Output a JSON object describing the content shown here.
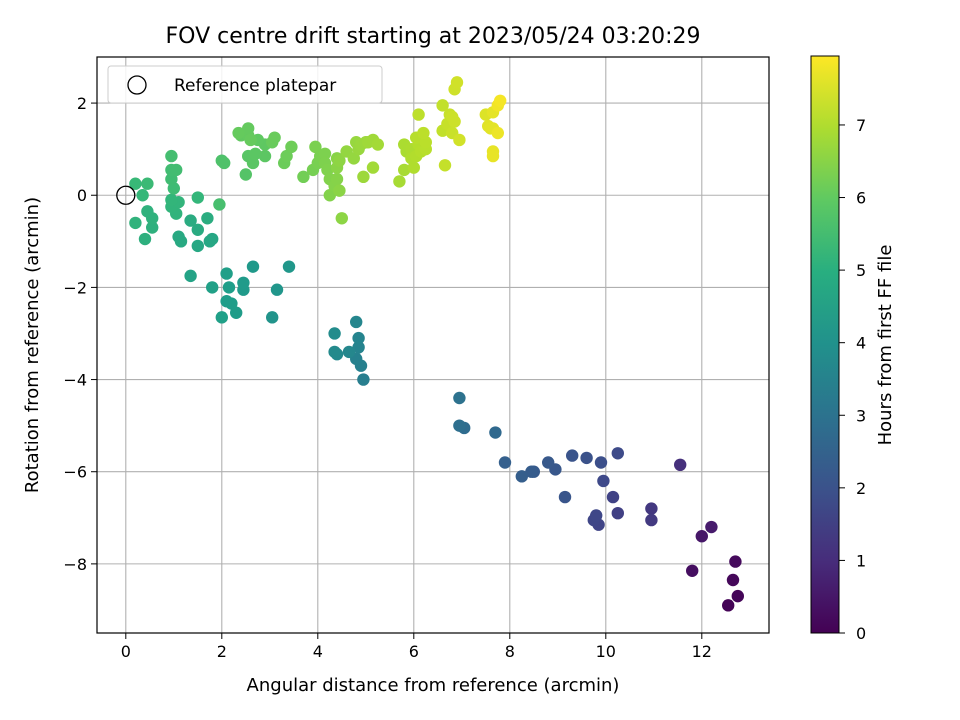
{
  "chart_data": {
    "type": "scatter",
    "title": "FOV centre drift starting at 2023/05/24 03:20:29",
    "xlabel": "Angular distance from reference (arcmin)",
    "ylabel": "Rotation from reference (arcmin)",
    "xlim": [
      -0.6,
      13.4
    ],
    "ylim": [
      -9.5,
      3.0
    ],
    "x_ticks": [
      0,
      2,
      4,
      6,
      8,
      10,
      12
    ],
    "y_ticks": [
      -8,
      -6,
      -4,
      -2,
      0,
      2
    ],
    "grid": true,
    "legend": {
      "placement": "top-left",
      "entries": [
        "Reference platepar"
      ]
    },
    "reference_point": {
      "x": 0,
      "y": 0
    },
    "colorbar": {
      "label": "Hours from first FF file",
      "range": [
        0,
        7.95
      ],
      "ticks": [
        0,
        1,
        2,
        3,
        4,
        5,
        6,
        7
      ],
      "colormap": "viridis"
    },
    "points": [
      {
        "x": 12.55,
        "y": -8.9,
        "h": 0.05
      },
      {
        "x": 12.75,
        "y": -8.7,
        "h": 0.1
      },
      {
        "x": 12.65,
        "y": -8.35,
        "h": 0.15
      },
      {
        "x": 12.7,
        "y": -7.95,
        "h": 0.2
      },
      {
        "x": 11.8,
        "y": -8.15,
        "h": 0.3
      },
      {
        "x": 12.0,
        "y": -7.4,
        "h": 0.5
      },
      {
        "x": 12.2,
        "y": -7.2,
        "h": 0.6
      },
      {
        "x": 11.55,
        "y": -5.85,
        "h": 1.1
      },
      {
        "x": 10.95,
        "y": -6.8,
        "h": 1.3
      },
      {
        "x": 10.95,
        "y": -7.05,
        "h": 1.35
      },
      {
        "x": 10.25,
        "y": -6.9,
        "h": 1.5
      },
      {
        "x": 10.15,
        "y": -6.55,
        "h": 1.55
      },
      {
        "x": 9.85,
        "y": -7.15,
        "h": 1.6
      },
      {
        "x": 9.75,
        "y": -7.05,
        "h": 1.65
      },
      {
        "x": 9.8,
        "y": -6.95,
        "h": 1.7
      },
      {
        "x": 9.95,
        "y": -6.2,
        "h": 1.75
      },
      {
        "x": 10.25,
        "y": -5.6,
        "h": 1.8
      },
      {
        "x": 9.9,
        "y": -5.8,
        "h": 1.9
      },
      {
        "x": 9.6,
        "y": -5.7,
        "h": 2.0
      },
      {
        "x": 9.3,
        "y": -5.65,
        "h": 2.05
      },
      {
        "x": 9.15,
        "y": -6.55,
        "h": 2.1
      },
      {
        "x": 8.95,
        "y": -5.95,
        "h": 2.15
      },
      {
        "x": 8.8,
        "y": -5.8,
        "h": 2.2
      },
      {
        "x": 8.5,
        "y": -6.0,
        "h": 2.25
      },
      {
        "x": 8.45,
        "y": -6.0,
        "h": 2.3
      },
      {
        "x": 8.25,
        "y": -6.1,
        "h": 2.35
      },
      {
        "x": 7.9,
        "y": -5.8,
        "h": 2.4
      },
      {
        "x": 7.7,
        "y": -5.15,
        "h": 2.7
      },
      {
        "x": 7.05,
        "y": -5.05,
        "h": 2.8
      },
      {
        "x": 6.95,
        "y": -5.0,
        "h": 2.9
      },
      {
        "x": 6.95,
        "y": -4.4,
        "h": 3.0
      },
      {
        "x": 4.95,
        "y": -4.0,
        "h": 3.4
      },
      {
        "x": 4.9,
        "y": -3.7,
        "h": 3.45
      },
      {
        "x": 4.8,
        "y": -3.55,
        "h": 3.5
      },
      {
        "x": 4.85,
        "y": -3.3,
        "h": 3.55
      },
      {
        "x": 4.85,
        "y": -3.1,
        "h": 3.6
      },
      {
        "x": 4.8,
        "y": -2.75,
        "h": 3.65
      },
      {
        "x": 4.65,
        "y": -3.4,
        "h": 3.7
      },
      {
        "x": 4.4,
        "y": -3.45,
        "h": 3.75
      },
      {
        "x": 4.35,
        "y": -3.4,
        "h": 3.8
      },
      {
        "x": 4.35,
        "y": -3.0,
        "h": 3.85
      },
      {
        "x": 3.05,
        "y": -2.65,
        "h": 4.1
      },
      {
        "x": 3.15,
        "y": -2.05,
        "h": 4.15
      },
      {
        "x": 3.4,
        "y": -1.55,
        "h": 4.2
      },
      {
        "x": 2.65,
        "y": -1.55,
        "h": 4.25
      },
      {
        "x": 2.45,
        "y": -2.05,
        "h": 4.3
      },
      {
        "x": 2.45,
        "y": -1.9,
        "h": 4.32
      },
      {
        "x": 2.3,
        "y": -2.55,
        "h": 4.35
      },
      {
        "x": 2.2,
        "y": -2.35,
        "h": 4.38
      },
      {
        "x": 2.1,
        "y": -2.3,
        "h": 4.4
      },
      {
        "x": 2.15,
        "y": -2.0,
        "h": 4.42
      },
      {
        "x": 2.1,
        "y": -1.7,
        "h": 4.45
      },
      {
        "x": 2.0,
        "y": -2.65,
        "h": 4.48
      },
      {
        "x": 1.8,
        "y": -2.0,
        "h": 4.5
      },
      {
        "x": 1.35,
        "y": -1.75,
        "h": 4.6
      },
      {
        "x": 1.8,
        "y": -0.95,
        "h": 4.7
      },
      {
        "x": 1.75,
        "y": -1.0,
        "h": 4.72
      },
      {
        "x": 1.5,
        "y": -1.1,
        "h": 4.75
      },
      {
        "x": 1.15,
        "y": -1.0,
        "h": 4.8
      },
      {
        "x": 1.1,
        "y": -0.9,
        "h": 4.82
      },
      {
        "x": 1.5,
        "y": -0.75,
        "h": 4.85
      },
      {
        "x": 1.35,
        "y": -0.55,
        "h": 4.88
      },
      {
        "x": 1.7,
        "y": -0.5,
        "h": 4.9
      },
      {
        "x": 0.4,
        "y": -0.95,
        "h": 5.0
      },
      {
        "x": 0.55,
        "y": -0.7,
        "h": 5.05
      },
      {
        "x": 0.55,
        "y": -0.5,
        "h": 5.08
      },
      {
        "x": 0.45,
        "y": -0.35,
        "h": 5.1
      },
      {
        "x": 0.2,
        "y": -0.6,
        "h": 5.12
      },
      {
        "x": 1.05,
        "y": -0.4,
        "h": 5.15
      },
      {
        "x": 0.95,
        "y": -0.25,
        "h": 5.18
      },
      {
        "x": 1.1,
        "y": -0.15,
        "h": 5.2
      },
      {
        "x": 0.95,
        "y": -0.1,
        "h": 5.22
      },
      {
        "x": 1.5,
        "y": -0.05,
        "h": 5.25
      },
      {
        "x": 0.35,
        "y": 0.0,
        "h": 5.3
      },
      {
        "x": 0.2,
        "y": 0.25,
        "h": 5.35
      },
      {
        "x": 0.45,
        "y": 0.25,
        "h": 5.4
      },
      {
        "x": 1.0,
        "y": 0.15,
        "h": 5.45
      },
      {
        "x": 0.95,
        "y": 0.35,
        "h": 5.48
      },
      {
        "x": 0.95,
        "y": 0.55,
        "h": 5.5
      },
      {
        "x": 1.05,
        "y": 0.55,
        "h": 5.52
      },
      {
        "x": 0.95,
        "y": 0.85,
        "h": 5.55
      },
      {
        "x": 1.95,
        "y": -0.2,
        "h": 5.6
      },
      {
        "x": 2.0,
        "y": 0.75,
        "h": 5.7
      },
      {
        "x": 2.05,
        "y": 0.7,
        "h": 5.72
      },
      {
        "x": 2.5,
        "y": 0.45,
        "h": 5.8
      },
      {
        "x": 2.55,
        "y": 0.85,
        "h": 5.85
      },
      {
        "x": 2.65,
        "y": 0.7,
        "h": 5.88
      },
      {
        "x": 2.7,
        "y": 0.9,
        "h": 5.9
      },
      {
        "x": 2.9,
        "y": 0.85,
        "h": 5.92
      },
      {
        "x": 2.9,
        "y": 1.1,
        "h": 5.95
      },
      {
        "x": 2.75,
        "y": 1.2,
        "h": 5.97
      },
      {
        "x": 2.4,
        "y": 1.3,
        "h": 6.0
      },
      {
        "x": 2.55,
        "y": 1.3,
        "h": 6.02
      },
      {
        "x": 2.55,
        "y": 1.45,
        "h": 6.04
      },
      {
        "x": 2.35,
        "y": 1.35,
        "h": 6.06
      },
      {
        "x": 2.6,
        "y": 1.2,
        "h": 6.08
      },
      {
        "x": 3.05,
        "y": 1.15,
        "h": 6.1
      },
      {
        "x": 3.1,
        "y": 1.25,
        "h": 6.12
      },
      {
        "x": 3.3,
        "y": 0.7,
        "h": 6.15
      },
      {
        "x": 3.35,
        "y": 0.85,
        "h": 6.18
      },
      {
        "x": 3.45,
        "y": 1.05,
        "h": 6.2
      },
      {
        "x": 3.7,
        "y": 0.4,
        "h": 6.25
      },
      {
        "x": 3.9,
        "y": 0.55,
        "h": 6.3
      },
      {
        "x": 4.0,
        "y": 0.7,
        "h": 6.32
      },
      {
        "x": 4.05,
        "y": 0.85,
        "h": 6.34
      },
      {
        "x": 3.95,
        "y": 1.05,
        "h": 6.36
      },
      {
        "x": 4.15,
        "y": 0.9,
        "h": 6.38
      },
      {
        "x": 4.15,
        "y": 0.7,
        "h": 6.4
      },
      {
        "x": 4.2,
        "y": 0.55,
        "h": 6.42
      },
      {
        "x": 4.25,
        "y": 0.35,
        "h": 6.44
      },
      {
        "x": 4.25,
        "y": 0.0,
        "h": 6.46
      },
      {
        "x": 4.35,
        "y": 0.2,
        "h": 6.48
      },
      {
        "x": 4.4,
        "y": 0.35,
        "h": 6.5
      },
      {
        "x": 4.4,
        "y": 0.8,
        "h": 6.52
      },
      {
        "x": 4.4,
        "y": 0.6,
        "h": 6.54
      },
      {
        "x": 4.45,
        "y": 0.1,
        "h": 6.56
      },
      {
        "x": 4.5,
        "y": -0.5,
        "h": 6.58
      },
      {
        "x": 4.45,
        "y": 0.75,
        "h": 6.6
      },
      {
        "x": 4.6,
        "y": 0.95,
        "h": 6.65
      },
      {
        "x": 4.75,
        "y": 0.8,
        "h": 6.68
      },
      {
        "x": 4.8,
        "y": 1.15,
        "h": 6.7
      },
      {
        "x": 4.85,
        "y": 1.0,
        "h": 6.72
      },
      {
        "x": 4.9,
        "y": 1.1,
        "h": 6.74
      },
      {
        "x": 5.0,
        "y": 1.15,
        "h": 6.76
      },
      {
        "x": 4.95,
        "y": 0.4,
        "h": 6.78
      },
      {
        "x": 5.05,
        "y": 1.15,
        "h": 6.8
      },
      {
        "x": 5.15,
        "y": 1.2,
        "h": 6.82
      },
      {
        "x": 5.15,
        "y": 0.6,
        "h": 6.84
      },
      {
        "x": 5.25,
        "y": 1.1,
        "h": 6.86
      },
      {
        "x": 5.7,
        "y": 0.3,
        "h": 6.9
      },
      {
        "x": 5.8,
        "y": 0.55,
        "h": 6.92
      },
      {
        "x": 5.85,
        "y": 0.95,
        "h": 6.94
      },
      {
        "x": 5.8,
        "y": 1.1,
        "h": 6.96
      },
      {
        "x": 5.95,
        "y": 1.0,
        "h": 6.98
      },
      {
        "x": 5.95,
        "y": 0.8,
        "h": 7.0
      },
      {
        "x": 6.0,
        "y": 0.6,
        "h": 7.02
      },
      {
        "x": 6.05,
        "y": 0.85,
        "h": 7.04
      },
      {
        "x": 6.1,
        "y": 1.1,
        "h": 7.06
      },
      {
        "x": 6.15,
        "y": 0.95,
        "h": 7.08
      },
      {
        "x": 6.05,
        "y": 1.25,
        "h": 7.1
      },
      {
        "x": 6.25,
        "y": 1.0,
        "h": 7.12
      },
      {
        "x": 6.25,
        "y": 1.15,
        "h": 7.14
      },
      {
        "x": 6.2,
        "y": 1.35,
        "h": 7.16
      },
      {
        "x": 6.1,
        "y": 1.75,
        "h": 7.18
      },
      {
        "x": 6.6,
        "y": 1.4,
        "h": 7.22
      },
      {
        "x": 6.6,
        "y": 1.95,
        "h": 7.24
      },
      {
        "x": 6.65,
        "y": 0.65,
        "h": 7.26
      },
      {
        "x": 6.7,
        "y": 1.55,
        "h": 7.28
      },
      {
        "x": 6.75,
        "y": 1.75,
        "h": 7.3
      },
      {
        "x": 6.8,
        "y": 1.35,
        "h": 7.32
      },
      {
        "x": 6.8,
        "y": 1.7,
        "h": 7.34
      },
      {
        "x": 6.85,
        "y": 1.6,
        "h": 7.36
      },
      {
        "x": 6.85,
        "y": 2.3,
        "h": 7.38
      },
      {
        "x": 6.9,
        "y": 2.45,
        "h": 7.4
      },
      {
        "x": 6.95,
        "y": 1.2,
        "h": 7.42
      },
      {
        "x": 7.5,
        "y": 1.75,
        "h": 7.55
      },
      {
        "x": 7.55,
        "y": 1.5,
        "h": 7.6
      },
      {
        "x": 7.6,
        "y": 1.45,
        "h": 7.62
      },
      {
        "x": 7.65,
        "y": 1.45,
        "h": 7.64
      },
      {
        "x": 7.65,
        "y": 1.8,
        "h": 7.66
      },
      {
        "x": 7.65,
        "y": 0.95,
        "h": 7.68
      },
      {
        "x": 7.65,
        "y": 0.85,
        "h": 7.7
      },
      {
        "x": 7.75,
        "y": 1.35,
        "h": 7.75
      },
      {
        "x": 7.75,
        "y": 1.95,
        "h": 7.8
      },
      {
        "x": 7.8,
        "y": 2.05,
        "h": 7.85
      }
    ]
  }
}
